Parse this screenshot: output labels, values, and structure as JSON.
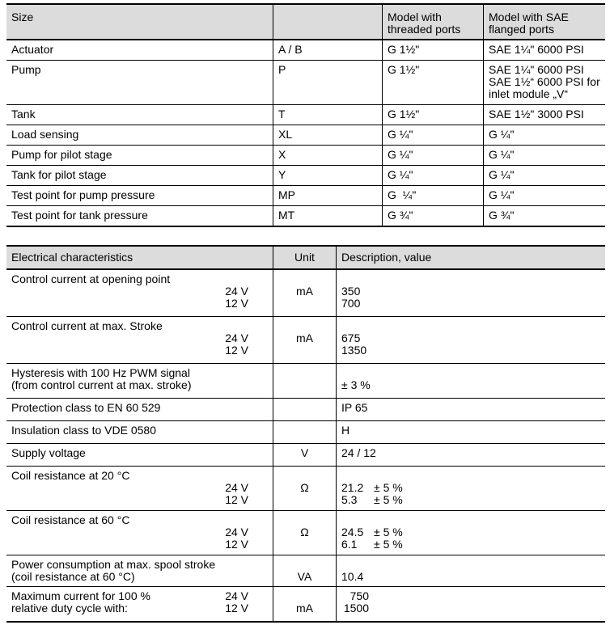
{
  "size_table": {
    "title": "Size",
    "col_threaded": "Model with threaded ports",
    "col_flanged": "Model with SAE flanged ports",
    "rows": [
      {
        "label": "Actuator",
        "code": "A / B",
        "threaded": "G 1½\"",
        "flanged1": "SAE 1¼\" 6000 PSI",
        "flanged2": "",
        "flanged3": ""
      },
      {
        "label": "Pump",
        "code": "P",
        "threaded": "G 1½\"",
        "flanged1": "SAE 1¼\" 6000 PSI",
        "flanged2": "SAE 1½“ 6000 PSI for",
        "flanged3": "inlet module „V“"
      },
      {
        "label": "Tank",
        "code": "T",
        "threaded": "G 1½\"",
        "flanged1": "SAE 1½\" 3000 PSI",
        "flanged2": "",
        "flanged3": ""
      },
      {
        "label": "Load sensing",
        "code": "XL",
        "threaded": "G ¼\"",
        "flanged1": "G ¼\"",
        "flanged2": "",
        "flanged3": ""
      },
      {
        "label": "Pump for pilot stage",
        "code": "X",
        "threaded": "G ¼\"",
        "flanged1": "G ¼\"",
        "flanged2": "",
        "flanged3": ""
      },
      {
        "label": "Tank for pilot stage",
        "code": "Y",
        "threaded": "G ¼\"",
        "flanged1": "G ¼\"",
        "flanged2": "",
        "flanged3": ""
      },
      {
        "label": "Test point for pump pressure",
        "code": "MP",
        "threaded": "G  ¼\"",
        "flanged1": "G ¼\"",
        "flanged2": "",
        "flanged3": ""
      },
      {
        "label": "Test point for tank pressure",
        "code": "MT",
        "threaded": "G ¾\"",
        "flanged1": "G ¾\"",
        "flanged2": "",
        "flanged3": ""
      }
    ]
  },
  "electrical_table": {
    "title": "Electrical characteristics",
    "col_unit": "Unit",
    "col_desc": "Description, value",
    "rows": {
      "opening": {
        "label": "Control current at opening point",
        "v1": "24 V",
        "v2": "12 V",
        "unit": "mA",
        "val1": "350",
        "val2": "700"
      },
      "maxstroke": {
        "label": "Control current at max. Stroke",
        "v1": "24 V",
        "v2": "12 V",
        "unit": "mA",
        "val1": "675",
        "val2": "1350"
      },
      "hysteresis": {
        "label1": "Hysteresis with 100 Hz PWM signal",
        "label2": "(from control current at max. stroke)",
        "unit": "",
        "val": "± 3 %"
      },
      "protection": {
        "label": "Protection class to EN 60 529",
        "unit": "",
        "val": "IP 65"
      },
      "insulation": {
        "label": "Insulation class to VDE 0580",
        "unit": "",
        "val": "H"
      },
      "supply": {
        "label": "Supply voltage",
        "unit": "V",
        "val": "24 / 12"
      },
      "coil20": {
        "label": "Coil resistance at 20 °C",
        "v1": "24 V",
        "v2": "12 V",
        "unit": "Ω",
        "val1": "21.2",
        "tol1": "± 5 %",
        "val2": "5.3",
        "tol2": "± 5 %"
      },
      "coil60": {
        "label": "Coil resistance at 60 °C",
        "v1": "24 V",
        "v2": "12 V",
        "unit": "Ω",
        "val1": "24.5",
        "tol1": "± 5 %",
        "val2": "6.1",
        "tol2": "± 5 %"
      },
      "power": {
        "label1": "Power consumption at max. spool stroke",
        "label2": "(coil resistance at 60 °C)",
        "unit": "VA",
        "val": "10.4"
      },
      "maxcurrent": {
        "label1": "Maximum current for 100 %",
        "label2": "relative duty cycle with:",
        "v1": "24 V",
        "v2": "12 V",
        "unit": "mA",
        "val1": "750",
        "val2": "1500"
      }
    }
  }
}
